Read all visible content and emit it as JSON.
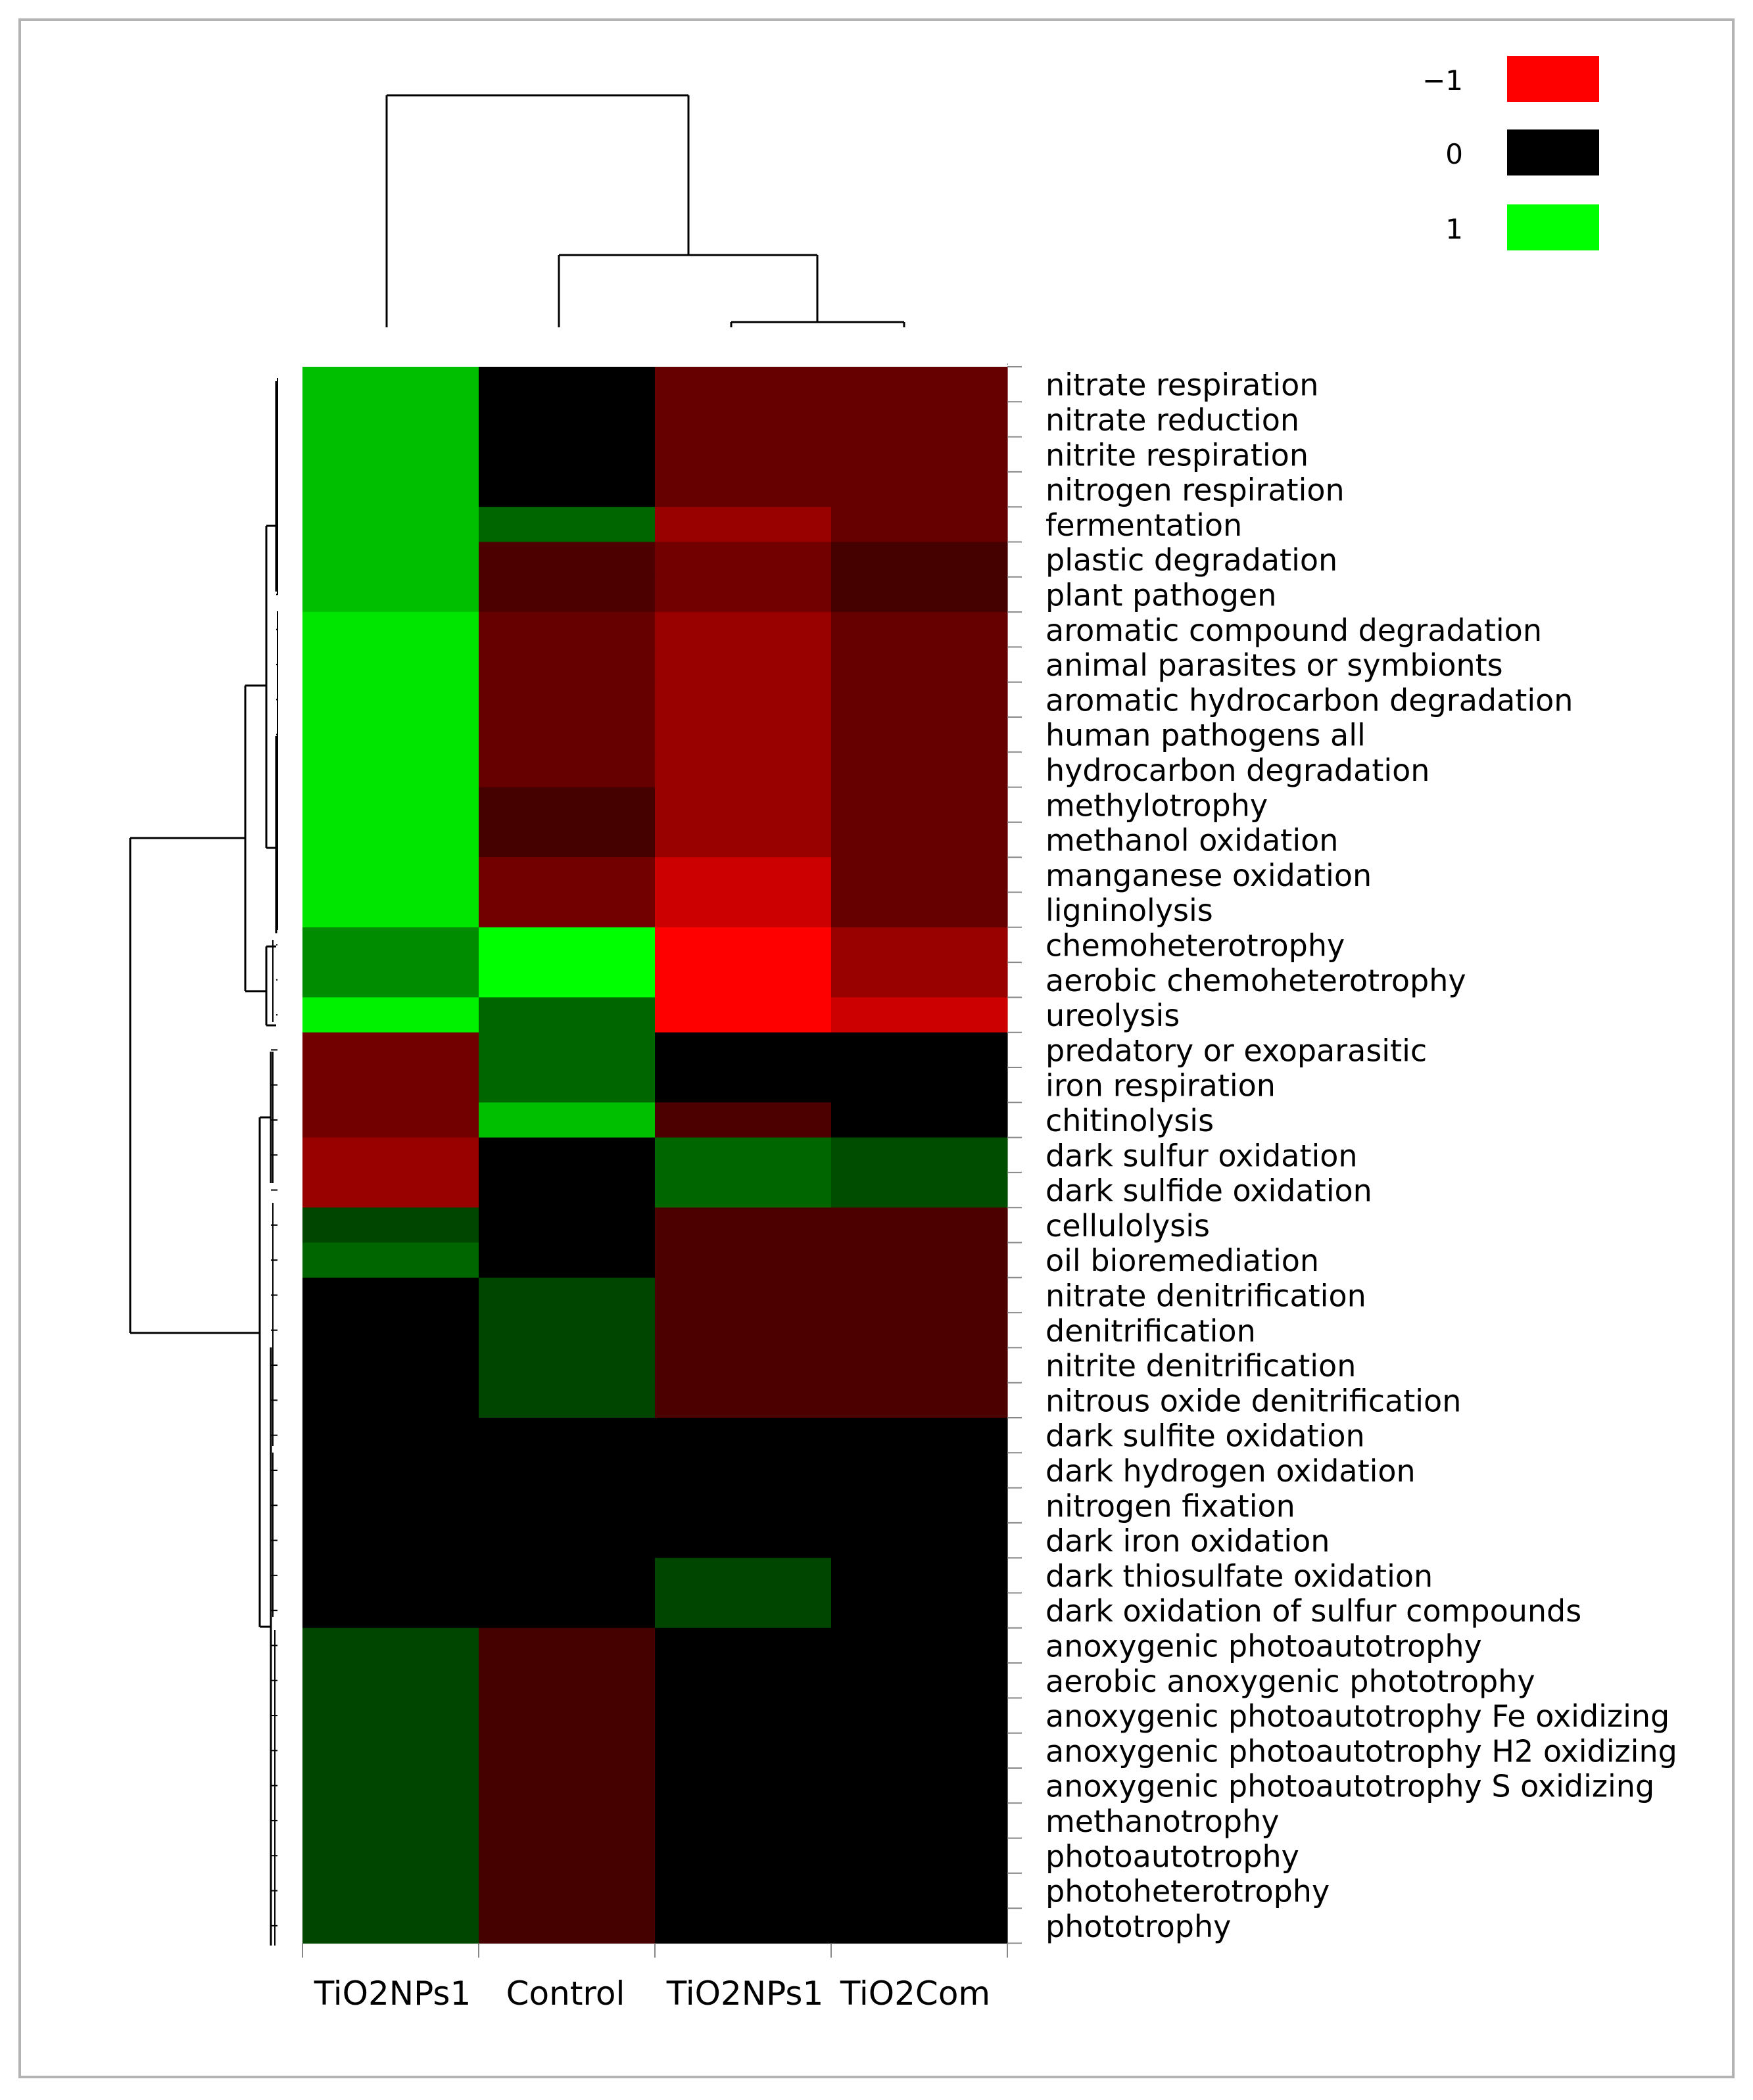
{
  "chart_data": {
    "type": "heatmap",
    "title": "",
    "xlabel": "",
    "ylabel": "",
    "legend": {
      "placement": "top-right",
      "entries": [
        {
          "label": "−1",
          "color": "#ff0000"
        },
        {
          "label": "0",
          "color": "#000000"
        },
        {
          "label": "1",
          "color": "#00ff00"
        }
      ]
    },
    "color_scale": {
      "min": -1,
      "mid": 0,
      "max": 1,
      "low_color": "#ff0000",
      "mid_color": "#000000",
      "high_color": "#00ff00"
    },
    "columns": [
      "TiO2NPs1",
      "Control",
      "TiO2NPs1",
      "TiO2Com"
    ],
    "rows": [
      "nitrate respiration",
      "nitrate reduction",
      "nitrite respiration",
      "nitrogen respiration",
      "fermentation",
      "plastic degradation",
      "plant pathogen",
      "aromatic compound degradation",
      "animal parasites or symbionts",
      "aromatic hydrocarbon degradation",
      "human pathogens all",
      "hydrocarbon degradation",
      "methylotrophy",
      "methanol oxidation",
      "manganese oxidation",
      "ligninolysis",
      "chemoheterotrophy",
      "aerobic chemoheterotrophy",
      "ureolysis",
      "predatory or exoparasitic",
      "iron respiration",
      "chitinolysis",
      "dark sulfur oxidation",
      "dark sulfide oxidation",
      "cellulolysis",
      "oil bioremediation",
      "nitrate denitrification",
      "denitrification",
      "nitrite denitrification",
      "nitrous oxide denitrification",
      "dark sulfite oxidation",
      "dark hydrogen oxidation",
      "nitrogen fixation",
      "dark iron oxidation",
      "dark thiosulfate oxidation",
      "dark oxidation of sulfur compounds",
      "anoxygenic photoautotrophy",
      "aerobic anoxygenic phototrophy",
      "anoxygenic photoautotrophy Fe oxidizing",
      "anoxygenic photoautotrophy H2 oxidizing",
      "anoxygenic photoautotrophy S oxidizing",
      "methanotrophy",
      "photoautotrophy",
      "photoheterotrophy",
      "phototrophy"
    ],
    "values": [
      [
        0.75,
        0,
        -0.4,
        -0.4
      ],
      [
        0.75,
        0,
        -0.4,
        -0.4
      ],
      [
        0.75,
        0,
        -0.4,
        -0.4
      ],
      [
        0.75,
        0,
        -0.4,
        -0.4
      ],
      [
        0.75,
        0.4,
        -0.6,
        -0.4
      ],
      [
        0.75,
        -0.3,
        -0.45,
        -0.27
      ],
      [
        0.75,
        -0.3,
        -0.45,
        -0.27
      ],
      [
        0.9,
        -0.4,
        -0.6,
        -0.4
      ],
      [
        0.9,
        -0.4,
        -0.6,
        -0.4
      ],
      [
        0.9,
        -0.4,
        -0.6,
        -0.4
      ],
      [
        0.9,
        -0.4,
        -0.6,
        -0.4
      ],
      [
        0.9,
        -0.4,
        -0.6,
        -0.4
      ],
      [
        0.9,
        -0.27,
        -0.6,
        -0.4
      ],
      [
        0.9,
        -0.27,
        -0.6,
        -0.4
      ],
      [
        0.9,
        -0.45,
        -0.8,
        -0.4
      ],
      [
        0.9,
        -0.45,
        -0.8,
        -0.4
      ],
      [
        0.55,
        1,
        -1,
        -0.6
      ],
      [
        0.55,
        1,
        -1,
        -0.6
      ],
      [
        0.95,
        0.4,
        -1,
        -0.8
      ],
      [
        -0.45,
        0.4,
        0,
        0
      ],
      [
        -0.45,
        0.4,
        0,
        0
      ],
      [
        -0.45,
        0.75,
        -0.3,
        0
      ],
      [
        -0.6,
        0,
        0.4,
        0.3
      ],
      [
        -0.6,
        0,
        0.4,
        0.3
      ],
      [
        0.27,
        0,
        -0.3,
        -0.3
      ],
      [
        0.4,
        0,
        -0.3,
        -0.3
      ],
      [
        0,
        0.27,
        -0.3,
        -0.3
      ],
      [
        0,
        0.27,
        -0.3,
        -0.3
      ],
      [
        0,
        0.27,
        -0.3,
        -0.3
      ],
      [
        0,
        0.27,
        -0.3,
        -0.3
      ],
      [
        0,
        0,
        0,
        0
      ],
      [
        0,
        0,
        0,
        0
      ],
      [
        0,
        0,
        0,
        0
      ],
      [
        0,
        0,
        0,
        0
      ],
      [
        0,
        0,
        0.27,
        0
      ],
      [
        0,
        0,
        0.27,
        0
      ],
      [
        0.27,
        -0.27,
        0,
        0
      ],
      [
        0.27,
        -0.27,
        0,
        0
      ],
      [
        0.27,
        -0.27,
        0,
        0
      ],
      [
        0.27,
        -0.27,
        0,
        0
      ],
      [
        0.27,
        -0.27,
        0,
        0
      ],
      [
        0.27,
        -0.27,
        0,
        0
      ],
      [
        0.27,
        -0.27,
        0,
        0
      ],
      [
        0.27,
        -0.27,
        0,
        0
      ],
      [
        0.27,
        -0.27,
        0,
        0
      ]
    ]
  }
}
